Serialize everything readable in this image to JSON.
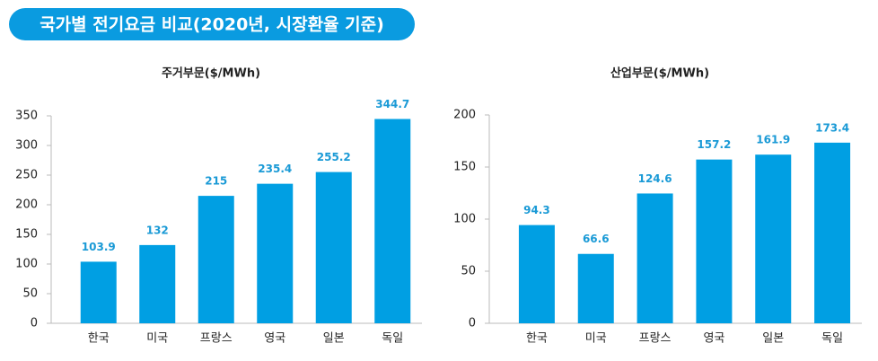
{
  "title": "국가별 전기요금 비교(2020년, 시장환율 기준)",
  "chart_data": [
    {
      "type": "bar",
      "title": "주거부문($/MWh)",
      "categories": [
        "한국",
        "미국",
        "프랑스",
        "영국",
        "일본",
        "독일"
      ],
      "values": [
        103.9,
        132,
        215,
        235.4,
        255.2,
        344.7
      ],
      "color": "#009fe3",
      "ylim": [
        0,
        350
      ],
      "yticks": [
        0,
        50,
        100,
        150,
        200,
        250,
        300,
        350
      ],
      "grid": false
    },
    {
      "type": "bar",
      "title": "산업부문($/MWh)",
      "categories": [
        "한국",
        "미국",
        "프랑스",
        "영국",
        "일본",
        "독일"
      ],
      "values": [
        94.3,
        66.6,
        124.6,
        157.2,
        161.9,
        173.4
      ],
      "color": "#009fe3",
      "ylim": [
        0,
        200
      ],
      "yticks": [
        0,
        50,
        100,
        150,
        200
      ],
      "grid": false
    }
  ]
}
